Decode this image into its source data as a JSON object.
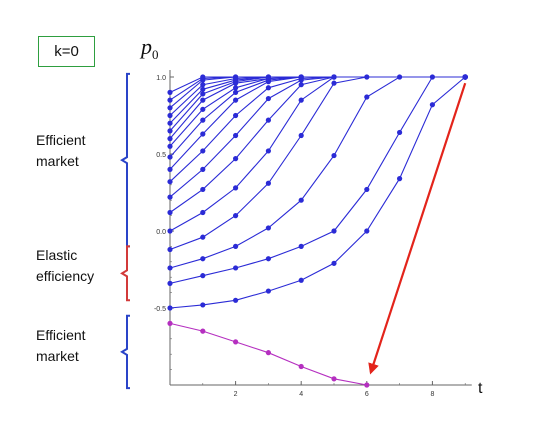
{
  "k_label": "k=0",
  "y_axis_label": "p₀",
  "y_axis_label_base": "p",
  "y_axis_label_sub": "0",
  "x_axis_label": "t",
  "regions": [
    {
      "id": "top",
      "label_lines": [
        "Efficient",
        "market"
      ],
      "color": "#2a44c8",
      "range": [
        -0.1,
        1.02
      ]
    },
    {
      "id": "middle",
      "label_lines": [
        "Elastic",
        "efficiency"
      ],
      "color": "#d23a3a",
      "range": [
        -0.45,
        -0.1
      ]
    },
    {
      "id": "bottom",
      "label_lines": [
        "Efficient",
        "market"
      ],
      "color": "#2a44c8",
      "range": [
        -1.02,
        -0.55
      ]
    }
  ],
  "colors": {
    "blue_series": "#2b2bd6",
    "magenta_series": "#b52fc0",
    "arrow": "#e3241b",
    "axis": "#666666"
  },
  "chart_data": {
    "type": "line",
    "xlabel": "t",
    "ylabel": "p₀",
    "xlim": [
      0,
      9.2
    ],
    "ylim": [
      -1.0,
      1.05
    ],
    "x_ticks": [
      2,
      4,
      6,
      8
    ],
    "y_ticks": [
      {
        "value": 1.0,
        "label": "1.0"
      },
      {
        "value": 0.5,
        "label": "0.5"
      },
      {
        "value": 0.0,
        "label": "0.0"
      },
      {
        "value": -0.5,
        "label": "-0.5"
      }
    ],
    "grid": false,
    "series": [
      {
        "color": "#2b2bd6",
        "points": [
          [
            0,
            0.9
          ],
          [
            1,
            1.0
          ],
          [
            9,
            1.0
          ]
        ]
      },
      {
        "color": "#2b2bd6",
        "points": [
          [
            0,
            0.85
          ],
          [
            1,
            0.99
          ],
          [
            2,
            1.0
          ],
          [
            9,
            1.0
          ]
        ]
      },
      {
        "color": "#2b2bd6",
        "points": [
          [
            0,
            0.8
          ],
          [
            1,
            0.98
          ],
          [
            2,
            1.0
          ],
          [
            9,
            1.0
          ]
        ]
      },
      {
        "color": "#2b2bd6",
        "points": [
          [
            0,
            0.75
          ],
          [
            1,
            0.95
          ],
          [
            2,
            0.99
          ],
          [
            3,
            1.0
          ],
          [
            9,
            1.0
          ]
        ]
      },
      {
        "color": "#2b2bd6",
        "points": [
          [
            0,
            0.7
          ],
          [
            1,
            0.92
          ],
          [
            2,
            0.98
          ],
          [
            3,
            1.0
          ],
          [
            9,
            1.0
          ]
        ]
      },
      {
        "color": "#2b2bd6",
        "points": [
          [
            0,
            0.65
          ],
          [
            1,
            0.89
          ],
          [
            2,
            0.97
          ],
          [
            3,
            1.0
          ],
          [
            9,
            1.0
          ]
        ]
      },
      {
        "color": "#2b2bd6",
        "points": [
          [
            0,
            0.6
          ],
          [
            1,
            0.85
          ],
          [
            2,
            0.96
          ],
          [
            3,
            0.99
          ],
          [
            4,
            1.0
          ],
          [
            9,
            1.0
          ]
        ]
      },
      {
        "color": "#2b2bd6",
        "points": [
          [
            0,
            0.55
          ],
          [
            1,
            0.79
          ],
          [
            2,
            0.93
          ],
          [
            3,
            0.99
          ],
          [
            4,
            1.0
          ],
          [
            9,
            1.0
          ]
        ]
      },
      {
        "color": "#2b2bd6",
        "points": [
          [
            0,
            0.48
          ],
          [
            1,
            0.72
          ],
          [
            2,
            0.9
          ],
          [
            3,
            0.98
          ],
          [
            4,
            1.0
          ],
          [
            9,
            1.0
          ]
        ]
      },
      {
        "color": "#2b2bd6",
        "points": [
          [
            0,
            0.4
          ],
          [
            1,
            0.63
          ],
          [
            2,
            0.85
          ],
          [
            3,
            0.97
          ],
          [
            4,
            1.0
          ],
          [
            9,
            1.0
          ]
        ]
      },
      {
        "color": "#2b2bd6",
        "points": [
          [
            0,
            0.32
          ],
          [
            1,
            0.52
          ],
          [
            2,
            0.75
          ],
          [
            3,
            0.93
          ],
          [
            4,
            0.99
          ],
          [
            5,
            1.0
          ],
          [
            9,
            1.0
          ]
        ]
      },
      {
        "color": "#2b2bd6",
        "points": [
          [
            0,
            0.22
          ],
          [
            1,
            0.4
          ],
          [
            2,
            0.62
          ],
          [
            3,
            0.86
          ],
          [
            4,
            0.98
          ],
          [
            5,
            1.0
          ],
          [
            9,
            1.0
          ]
        ]
      },
      {
        "color": "#2b2bd6",
        "points": [
          [
            0,
            0.12
          ],
          [
            1,
            0.27
          ],
          [
            2,
            0.47
          ],
          [
            3,
            0.72
          ],
          [
            4,
            0.95
          ],
          [
            5,
            1.0
          ],
          [
            9,
            1.0
          ]
        ]
      },
      {
        "color": "#2b2bd6",
        "points": [
          [
            0,
            0.0
          ],
          [
            1,
            0.12
          ],
          [
            2,
            0.28
          ],
          [
            3,
            0.52
          ],
          [
            4,
            0.85
          ],
          [
            5,
            1.0
          ],
          [
            9,
            1.0
          ]
        ]
      },
      {
        "color": "#2b2bd6",
        "points": [
          [
            0,
            -0.12
          ],
          [
            1,
            -0.04
          ],
          [
            2,
            0.1
          ],
          [
            3,
            0.31
          ],
          [
            4,
            0.62
          ],
          [
            5,
            0.96
          ],
          [
            6,
            1.0
          ],
          [
            9,
            1.0
          ]
        ]
      },
      {
        "color": "#2b2bd6",
        "points": [
          [
            0,
            -0.24
          ],
          [
            1,
            -0.18
          ],
          [
            2,
            -0.1
          ],
          [
            3,
            0.02
          ],
          [
            4,
            0.2
          ],
          [
            5,
            0.49
          ],
          [
            6,
            0.87
          ],
          [
            7,
            1.0
          ],
          [
            9,
            1.0
          ]
        ]
      },
      {
        "color": "#2b2bd6",
        "points": [
          [
            0,
            -0.34
          ],
          [
            1,
            -0.29
          ],
          [
            2,
            -0.24
          ],
          [
            3,
            -0.18
          ],
          [
            4,
            -0.1
          ],
          [
            5,
            0.0
          ],
          [
            6,
            0.27
          ],
          [
            7,
            0.64
          ],
          [
            8,
            1.0
          ],
          [
            9,
            1.0
          ]
        ]
      },
      {
        "color": "#2b2bd6",
        "points": [
          [
            0,
            -0.5
          ],
          [
            1,
            -0.48
          ],
          [
            2,
            -0.45
          ],
          [
            3,
            -0.39
          ],
          [
            4,
            -0.32
          ],
          [
            5,
            -0.21
          ],
          [
            6,
            0.0
          ],
          [
            7,
            0.34
          ],
          [
            8,
            0.82
          ],
          [
            9,
            1.0
          ]
        ]
      },
      {
        "color": "#b52fc0",
        "points": [
          [
            0,
            -0.6
          ],
          [
            1,
            -0.65
          ],
          [
            2,
            -0.72
          ],
          [
            3,
            -0.79
          ],
          [
            4,
            -0.88
          ],
          [
            5,
            -0.96
          ],
          [
            6,
            -1.0
          ]
        ]
      }
    ],
    "arrow": {
      "from": [
        9,
        0.96
      ],
      "to": [
        6,
        -0.97
      ]
    }
  }
}
